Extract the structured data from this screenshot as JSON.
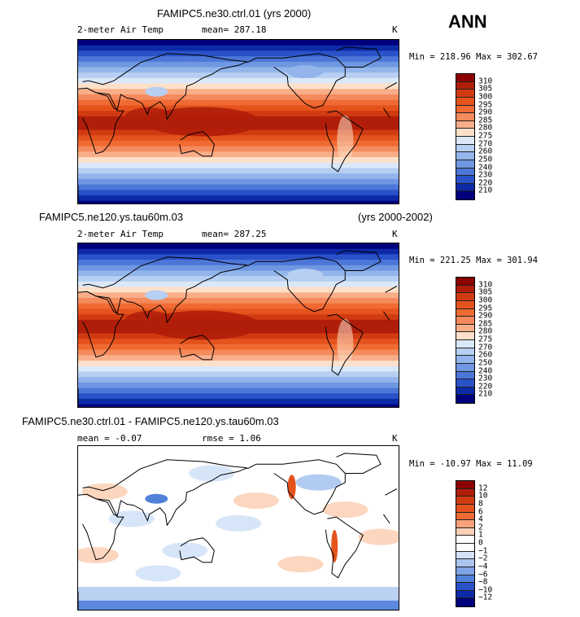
{
  "season": "ANN",
  "panels": [
    {
      "title": "FAMIPC5.ne30.ctrl.01 (yrs 2000)",
      "title_right": "",
      "variable": "2-meter Air Temp",
      "stat1": "mean= 287.18",
      "stat2": "",
      "units": "K",
      "minmax": "Min = 218.96 Max = 302.67",
      "kind": "abs",
      "colorbar_labels": [
        "310",
        "305",
        "300",
        "295",
        "290",
        "285",
        "280",
        "275",
        "270",
        "260",
        "250",
        "240",
        "230",
        "220",
        "210"
      ]
    },
    {
      "title": "FAMIPC5.ne120.ys.tau60m.03",
      "title_right": "(yrs 2000-2002)",
      "variable": "2-meter Air Temp",
      "stat1": "mean= 287.25",
      "stat2": "",
      "units": "K",
      "minmax": "Min = 221.25 Max = 301.94",
      "kind": "abs",
      "colorbar_labels": [
        "310",
        "305",
        "300",
        "295",
        "290",
        "285",
        "280",
        "275",
        "270",
        "260",
        "250",
        "240",
        "230",
        "220",
        "210"
      ]
    },
    {
      "title": "FAMIPC5.ne30.ctrl.01 - FAMIPC5.ne120.ys.tau60m.03",
      "title_right": "",
      "variable": "",
      "stat1": "mean =  -0.07",
      "stat2": "rmse =    1.06",
      "units": "K",
      "minmax": "Min = -10.97 Max =  11.09",
      "kind": "diff",
      "colorbar_labels": [
        "12",
        "10",
        "8",
        "6",
        "4",
        "2",
        "1",
        "0",
        "−1",
        "−2",
        "−4",
        "−6",
        "−8",
        "−10",
        "−12"
      ]
    }
  ],
  "colors": {
    "abs_scale": [
      "#8b0000",
      "#b01e0a",
      "#d13b12",
      "#e5531d",
      "#f06a33",
      "#f58a5c",
      "#f9ae8a",
      "#fde0c9",
      "#dbe8f8",
      "#b7cff2",
      "#93b5eb",
      "#6f97e2",
      "#4c76d8",
      "#2a52c8",
      "#0c2aa8",
      "#00007c"
    ],
    "diff_scale": [
      "#8b0000",
      "#b01e0a",
      "#d13b12",
      "#e5531d",
      "#f06a33",
      "#f9a27b",
      "#fcd1b8",
      "#ffffff",
      "#ffffff",
      "#d3e2f7",
      "#aac6ef",
      "#7fa4e6",
      "#5281da",
      "#2a52c8",
      "#0c2aa8",
      "#00007c"
    ],
    "coast": "#000000"
  }
}
